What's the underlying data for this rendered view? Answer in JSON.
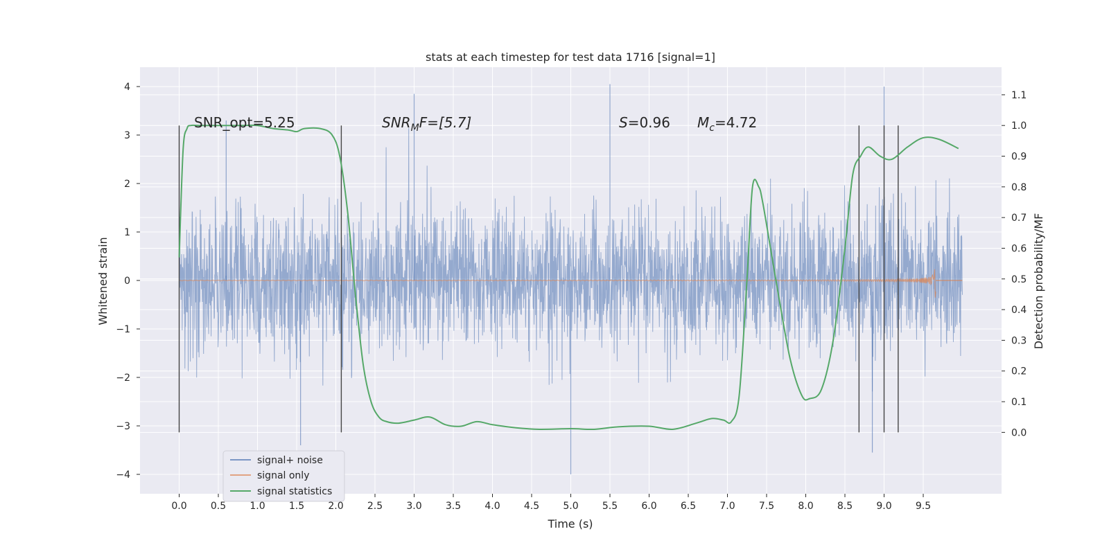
{
  "chart_data": {
    "type": "line",
    "title": "stats at each timestep for test data 1716 [signal=1]",
    "xlabel": "Time (s)",
    "ylabel": "Whitened strain",
    "ylabel_right": "Detection probability/MF",
    "xlim": [
      -0.5,
      10.5
    ],
    "ylim": [
      -4.4,
      4.4
    ],
    "ylim_right": [
      -0.2,
      1.19
    ],
    "xticks": [
      "0.0",
      "0.5",
      "1.0",
      "1.5",
      "2.0",
      "2.5",
      "3.0",
      "3.5",
      "4.0",
      "4.5",
      "5.0",
      "5.5",
      "6.0",
      "6.5",
      "7.0",
      "7.5",
      "8.0",
      "8.5",
      "9.0",
      "9.5"
    ],
    "yticks": [
      "4",
      "3",
      "2",
      "1",
      "0",
      "−1",
      "−2",
      "−3",
      "−4"
    ],
    "yticks_right": [
      "1.1",
      "1.0",
      "0.9",
      "0.8",
      "0.7",
      "0.6",
      "0.5",
      "0.4",
      "0.3",
      "0.2",
      "0.1",
      "0.0"
    ],
    "grid": true,
    "legend_position": "lower-left",
    "annotations": {
      "snr_opt": "SNR_opt=5.25",
      "snr_mf": {
        "base": "SNR",
        "sub": "M",
        "rest": "F=[5.7]"
      },
      "s_val": {
        "base": "S",
        "rest": "=0.96"
      },
      "mc": {
        "base": "M",
        "sub": "c",
        "rest": "=4.72"
      }
    },
    "vertical_markers_x": [
      0.0,
      2.07,
      8.68,
      9.0,
      9.18
    ],
    "series": [
      {
        "name": "signal+ noise",
        "color": "#4c72b0",
        "description_range": [
          0.0,
          10.0
        ],
        "peak_examples": [
          [
            0.6,
            3.3
          ],
          [
            1.55,
            -3.4
          ],
          [
            3.0,
            3.85
          ],
          [
            5.0,
            -4.0
          ],
          [
            5.5,
            4.05
          ],
          [
            9.0,
            4.0
          ],
          [
            8.85,
            -3.55
          ]
        ]
      },
      {
        "name": "signal only",
        "color": "#dd8452",
        "chirp_end": 9.66,
        "chirp_peak": 0.6
      },
      {
        "name": "signal statistics",
        "color": "#55a868",
        "x": [
          0.0,
          0.05,
          0.1,
          0.15,
          0.25,
          0.5,
          0.8,
          1.0,
          1.2,
          1.4,
          1.5,
          1.6,
          1.8,
          1.95,
          2.05,
          2.15,
          2.25,
          2.35,
          2.45,
          2.55,
          2.65,
          2.8,
          3.0,
          3.2,
          3.4,
          3.6,
          3.8,
          4.0,
          4.3,
          4.6,
          5.0,
          5.3,
          5.6,
          6.0,
          6.3,
          6.6,
          6.8,
          6.95,
          7.05,
          7.15,
          7.25,
          7.32,
          7.4,
          7.45,
          7.55,
          7.65,
          7.8,
          7.95,
          8.05,
          8.2,
          8.35,
          8.5,
          8.6,
          8.7,
          8.8,
          8.95,
          9.1,
          9.3,
          9.5,
          9.7,
          9.95
        ],
        "y": [
          0.57,
          0.92,
          0.99,
          1.0,
          1.0,
          1.0,
          1.0,
          1.0,
          0.99,
          0.985,
          0.98,
          0.99,
          0.99,
          0.97,
          0.9,
          0.72,
          0.45,
          0.22,
          0.1,
          0.05,
          0.035,
          0.03,
          0.04,
          0.05,
          0.025,
          0.02,
          0.035,
          0.025,
          0.015,
          0.01,
          0.012,
          0.01,
          0.018,
          0.02,
          0.01,
          0.03,
          0.045,
          0.04,
          0.035,
          0.12,
          0.5,
          0.8,
          0.8,
          0.75,
          0.6,
          0.45,
          0.24,
          0.12,
          0.11,
          0.14,
          0.3,
          0.6,
          0.84,
          0.9,
          0.93,
          0.9,
          0.89,
          0.93,
          0.96,
          0.955,
          0.925
        ]
      }
    ]
  }
}
